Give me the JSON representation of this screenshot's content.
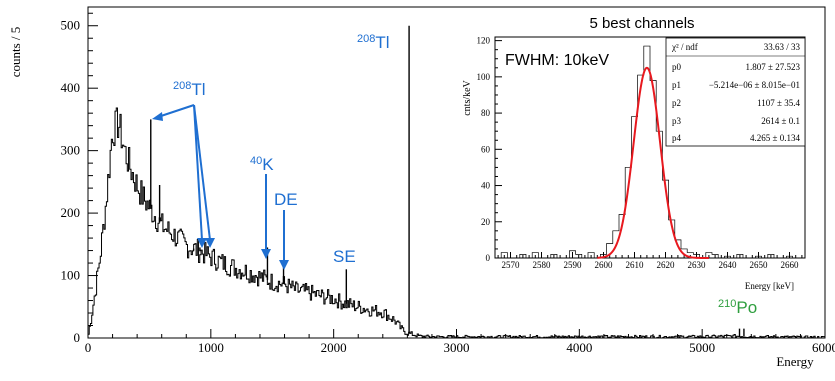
{
  "colors": {
    "annotation": "#1f6fd1",
    "po_label": "#2e9e3e",
    "fit_curve": "#e8191f",
    "histogram": "#000000"
  },
  "chart_data": [
    {
      "type": "line",
      "xlabel": "Energy",
      "ylabel": "counts / 5",
      "xlim": [
        0,
        6000
      ],
      "ylim": [
        0,
        530
      ],
      "x_ticks": [
        0,
        1000,
        2000,
        3000,
        4000,
        5000,
        6000
      ],
      "y_ticks": [
        0,
        100,
        200,
        300,
        400,
        500
      ],
      "grid": false,
      "step": true,
      "background": {
        "x": [
          0,
          50,
          100,
          150,
          200,
          250,
          300,
          350,
          400,
          450,
          500,
          600,
          700,
          800,
          900,
          1000,
          1100,
          1200,
          1300,
          1400,
          1500,
          1600,
          1700,
          1800,
          1900,
          2000,
          2100,
          2200,
          2300,
          2400,
          2500,
          2550,
          2600,
          2700,
          2800,
          3000,
          3500,
          4000,
          4500,
          5000,
          5300,
          5500,
          6000
        ],
        "y": [
          0,
          60,
          130,
          220,
          330,
          345,
          300,
          270,
          245,
          225,
          210,
          180,
          165,
          148,
          140,
          130,
          120,
          112,
          106,
          98,
          90,
          86,
          76,
          73,
          67,
          63,
          55,
          50,
          45,
          42,
          28,
          15,
          8,
          3,
          2,
          2,
          2,
          2,
          2,
          2,
          3,
          2,
          1
        ]
      },
      "peaks": [
        {
          "x": 511,
          "y": 350
        },
        {
          "x": 583,
          "y": 245
        },
        {
          "x": 860,
          "y": 140
        },
        {
          "x": 911,
          "y": 145
        },
        {
          "x": 969,
          "y": 133
        },
        {
          "x": 1461,
          "y": 145
        },
        {
          "x": 1592,
          "y": 125
        },
        {
          "x": 2103,
          "y": 110
        },
        {
          "x": 2614,
          "y": 500
        },
        {
          "x": 5304,
          "y": 15
        },
        {
          "x": 5340,
          "y": 15
        }
      ],
      "annotations": [
        {
          "base": "208",
          "text": "Tl",
          "color": "annotation"
        },
        {
          "base": "208",
          "text": "Tl",
          "color": "annotation"
        },
        {
          "base": "40",
          "text": "K",
          "color": "annotation"
        },
        {
          "text": "DE",
          "color": "annotation"
        },
        {
          "text": "SE",
          "color": "annotation"
        },
        {
          "base": "210",
          "text": "Po",
          "color": "po_label"
        }
      ]
    },
    {
      "type": "line",
      "title": "5 best channels",
      "xlabel": "Energy [keV]",
      "ylabel": "cnts/keV",
      "xlim": [
        2565,
        2665
      ],
      "ylim": [
        0,
        122
      ],
      "x_ticks": [
        2570,
        2580,
        2590,
        2600,
        2610,
        2620,
        2630,
        2640,
        2650,
        2660
      ],
      "y_ticks": [
        0,
        20,
        40,
        60,
        80,
        100,
        120
      ],
      "annotation": "FWHM: 10keV",
      "histogram": {
        "x": [
          2566,
          2568,
          2570,
          2572,
          2574,
          2576,
          2578,
          2580,
          2582,
          2584,
          2586,
          2588,
          2590,
          2592,
          2594,
          2596,
          2598,
          2600,
          2602,
          2604,
          2606,
          2608,
          2610,
          2612,
          2614,
          2616,
          2618,
          2620,
          2622,
          2624,
          2626,
          2628,
          2630,
          2632,
          2634,
          2636,
          2638,
          2640,
          2642,
          2644,
          2646,
          2648,
          2650,
          2652,
          2654,
          2656,
          2658,
          2660,
          2662
        ],
        "y": [
          0,
          3,
          0,
          0,
          2,
          0,
          3,
          0,
          0,
          2,
          0,
          0,
          4,
          2,
          0,
          3,
          0,
          2,
          8,
          15,
          24,
          50,
          78,
          101,
          117,
          98,
          70,
          43,
          21,
          10,
          5,
          3,
          2,
          0,
          3,
          2,
          0,
          1,
          0,
          2,
          0,
          0,
          1,
          0,
          2,
          0,
          0,
          1,
          0
        ]
      },
      "fit": {
        "function": "gaussian",
        "x_range": [
          2598,
          2634
        ],
        "amplitude": 105,
        "mean": 2614,
        "sigma": 4.265
      },
      "stats_box": {
        "header_left": "χ² / ndf",
        "header_right": "33.63 / 33",
        "rows": [
          {
            "name": "p0",
            "value": "1.807 ± 27.523"
          },
          {
            "name": "p1",
            "value": "−5.214e−06 ± 8.015e−01"
          },
          {
            "name": "p2",
            "value": "1107 ± 35.4"
          },
          {
            "name": "p3",
            "value": "2614 ± 0.1"
          },
          {
            "name": "p4",
            "value": "4.265 ± 0.134"
          }
        ]
      }
    }
  ]
}
